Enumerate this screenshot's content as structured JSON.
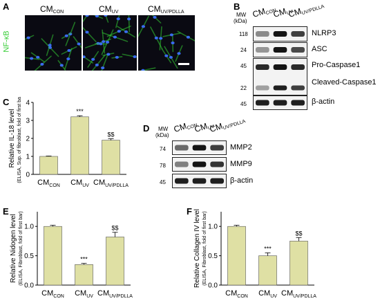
{
  "panelA": {
    "letter": "A",
    "stain": "NF-κB",
    "conditions": [
      {
        "base": "CM",
        "sub": "CON"
      },
      {
        "base": "CM",
        "sub": "UV"
      },
      {
        "base": "CM",
        "sub": "UV/PDLLA"
      }
    ],
    "colors": {
      "stain": "#33cc33",
      "nucleus": "#3a6cf0",
      "background": "#0a0a12"
    }
  },
  "panelB": {
    "letter": "B",
    "mw_header": [
      "MW",
      "(kDa)"
    ],
    "conditions": [
      {
        "base": "CM",
        "sub": "CON"
      },
      {
        "base": "CM",
        "sub": "UV"
      },
      {
        "base": "CM",
        "sub": "UV/PDLLA"
      }
    ],
    "rows": [
      {
        "mw": "118",
        "label": "NLRP3",
        "intensity": [
          0.45,
          1.0,
          0.8
        ]
      },
      {
        "mw": "24",
        "label": "ASC",
        "intensity": [
          0.4,
          1.0,
          0.75
        ]
      },
      {
        "mw": "45",
        "label": "Pro-Caspase1",
        "intensity": [
          0.9,
          1.0,
          0.9
        ]
      },
      {
        "mw": "22",
        "label": "Cleaved-Caspase1",
        "intensity": [
          0.35,
          0.95,
          0.8
        ]
      },
      {
        "mw": "45",
        "label": "β-actin",
        "intensity": [
          0.95,
          0.95,
          0.95
        ]
      }
    ]
  },
  "panelD": {
    "letter": "D",
    "mw_header": [
      "MW",
      "(kDa)"
    ],
    "conditions": [
      {
        "base": "CM",
        "sub": "CON"
      },
      {
        "base": "CM",
        "sub": "UV"
      },
      {
        "base": "CM",
        "sub": "UV/PDLLA"
      }
    ],
    "rows": [
      {
        "mw": "74",
        "label": "MMP2",
        "intensity": [
          0.6,
          1.0,
          0.8
        ]
      },
      {
        "mw": "78",
        "label": "MMP9",
        "intensity": [
          0.5,
          1.0,
          0.85
        ]
      },
      {
        "mw": "45",
        "label": "β-actin",
        "intensity": [
          0.95,
          0.95,
          0.95
        ]
      }
    ]
  },
  "chart_data": [
    {
      "panel": "C",
      "type": "bar",
      "categories": [
        {
          "base": "CM",
          "sub": "CON"
        },
        {
          "base": "CM",
          "sub": "UV"
        },
        {
          "base": "CM",
          "sub": "UV/PDLLA"
        }
      ],
      "values": [
        1.0,
        3.2,
        1.9
      ],
      "errors": [
        0.02,
        0.06,
        0.08
      ],
      "significance": [
        "",
        "***",
        "$$"
      ],
      "ylabel": "Relative IL-18 level",
      "ylabel_sub": "(ELISA, Sup. of fibroblast, fold of first bar)",
      "ylim": [
        0,
        4
      ],
      "yticks": [
        "0",
        "1",
        "2",
        "3",
        "4"
      ],
      "bar_color": "#dfe0a4"
    },
    {
      "panel": "E",
      "type": "bar",
      "categories": [
        {
          "base": "CM",
          "sub": "CON"
        },
        {
          "base": "CM",
          "sub": "UV"
        },
        {
          "base": "CM",
          "sub": "UV/PDLLA"
        }
      ],
      "values": [
        1.0,
        0.35,
        0.82
      ],
      "errors": [
        0.02,
        0.02,
        0.08
      ],
      "significance": [
        "",
        "***",
        "$$"
      ],
      "ylabel": "Relative Nidogen level",
      "ylabel_sub": "(ELISA, Fibroblast, fold of first bar)",
      "ylim": [
        0,
        1.25
      ],
      "yticks": [
        "0.0",
        "0.5",
        "1.0"
      ],
      "bar_color": "#dfe0a4"
    },
    {
      "panel": "F",
      "type": "bar",
      "categories": [
        {
          "base": "CM",
          "sub": "CON"
        },
        {
          "base": "CM",
          "sub": "UV"
        },
        {
          "base": "CM",
          "sub": "UV/PDLLA"
        }
      ],
      "values": [
        1.0,
        0.5,
        0.75
      ],
      "errors": [
        0.02,
        0.05,
        0.06
      ],
      "significance": [
        "",
        "***",
        "$$"
      ],
      "ylabel": "Relative Collagen IV level",
      "ylabel_sub": "(ELISA, Fibroblast, fold of first bar)",
      "ylim": [
        0,
        1.25
      ],
      "yticks": [
        "0.0",
        "0.5",
        "1.0"
      ],
      "bar_color": "#dfe0a4"
    }
  ]
}
